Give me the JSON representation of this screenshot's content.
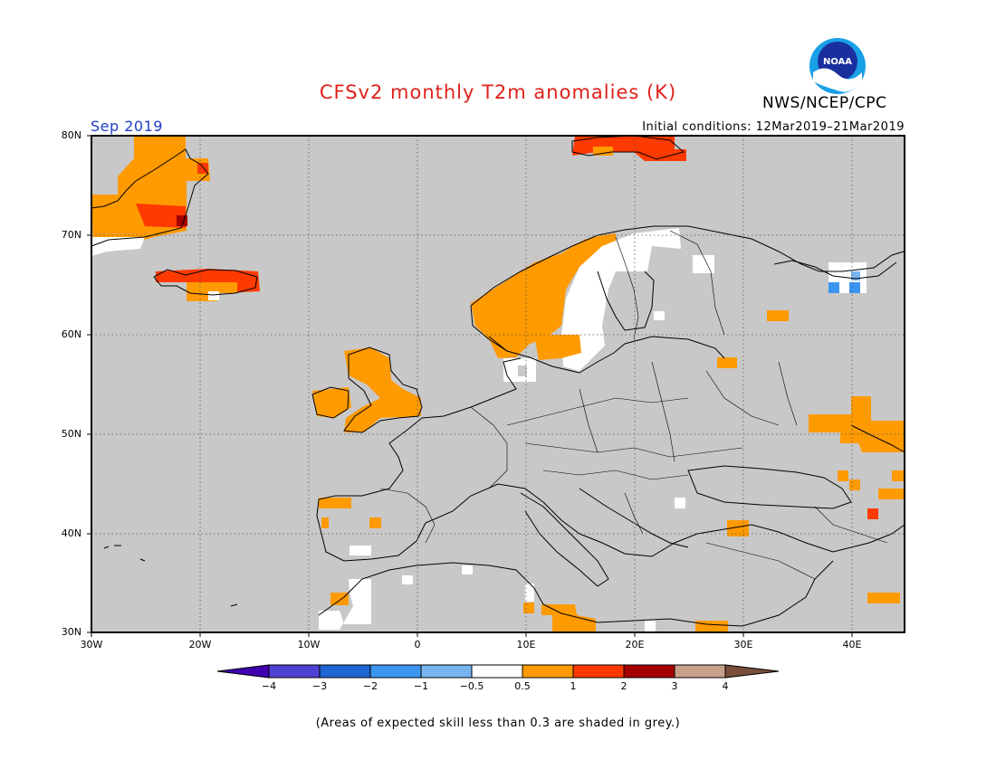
{
  "header": {
    "title": "CFSv2 monthly T2m anomalies (K)",
    "org": "NWS/NCEP/CPC",
    "logo_text": "NOAA",
    "month": "Sep 2019",
    "initial_conditions": "Initial conditions: 12Mar2019–21Mar2019"
  },
  "axes": {
    "lat_labels": [
      "80N",
      "70N",
      "60N",
      "50N",
      "40N",
      "30N"
    ],
    "lon_labels": [
      "30W",
      "20W",
      "10W",
      "0",
      "10E",
      "20E",
      "30E",
      "40E"
    ]
  },
  "colorbar": {
    "tick_labels": [
      "−4",
      "−3",
      "−2",
      "−1",
      "−0.5",
      "0.5",
      "1",
      "2",
      "3",
      "4"
    ],
    "colors": [
      "#3e00b0",
      "#4f40d4",
      "#1e64d2",
      "#3c96f0",
      "#78b4f0",
      "#ffffff",
      "#ff9a00",
      "#ff3a00",
      "#a50000",
      "#c8a08c",
      "#7a4e3c"
    ]
  },
  "map_colors": {
    "ocean_land": "#c8c8c8",
    "white": "#ffffff",
    "orange": "#ff9a00",
    "red": "#ff3a00",
    "darkred": "#a50000",
    "lightblue": "#3c96f0"
  },
  "footnote": "(Areas of expected skill less than 0.3 are shaded in grey.)"
}
